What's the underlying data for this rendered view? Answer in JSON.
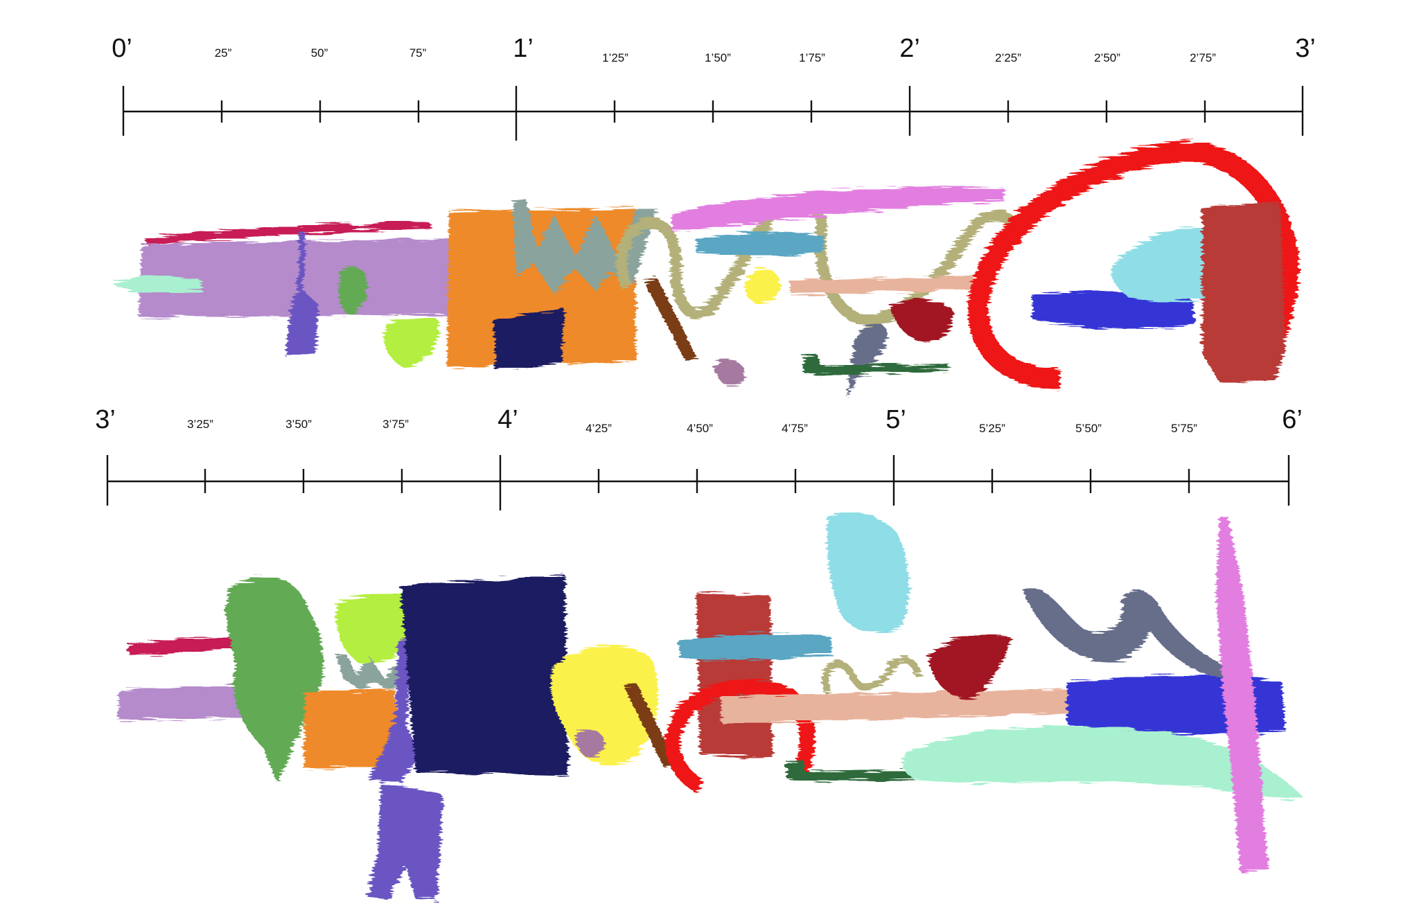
{
  "rulers": [
    {
      "name": "ruler-top",
      "major_labels": [
        "0’",
        "1’",
        "2’",
        "3’"
      ],
      "minor_labels": [
        "25”",
        "50”",
        "75”",
        "1’25”",
        "1’50”",
        "1’75”",
        "2’25”",
        "2’50”",
        "2’75”"
      ]
    },
    {
      "name": "ruler-bottom",
      "major_labels": [
        "3’",
        "4’",
        "5’",
        "6’"
      ],
      "minor_labels": [
        "3’25”",
        "3’50”",
        "3’75”",
        "4’25”",
        "4’50”",
        "4’75”",
        "5’25”",
        "5’50”",
        "5’75”"
      ]
    }
  ],
  "palette": {
    "lavender": "#b58bcc",
    "mint": "#a8f0cf",
    "crimson": "#c71e57",
    "orange": "#ee8a2b",
    "grey_green": "#8aa39c",
    "khaki": "#b3b07a",
    "magenta": "#e27ee0",
    "steel_blue": "#5aa6c3",
    "yellow": "#fbf14b",
    "peach": "#e8b39c",
    "red": "#ee1414",
    "brick": "#b83a39",
    "royal_blue": "#3436d6",
    "sky": "#8fdde6",
    "navy": "#1c1a62",
    "violet": "#6b55c2",
    "green": "#63aa55",
    "lime": "#b4ee3f",
    "brown": "#7a3c14",
    "mauve": "#a67aa0",
    "dark_green": "#2f6a3a",
    "slate": "#666e8a",
    "dark_red": "#a11423"
  }
}
